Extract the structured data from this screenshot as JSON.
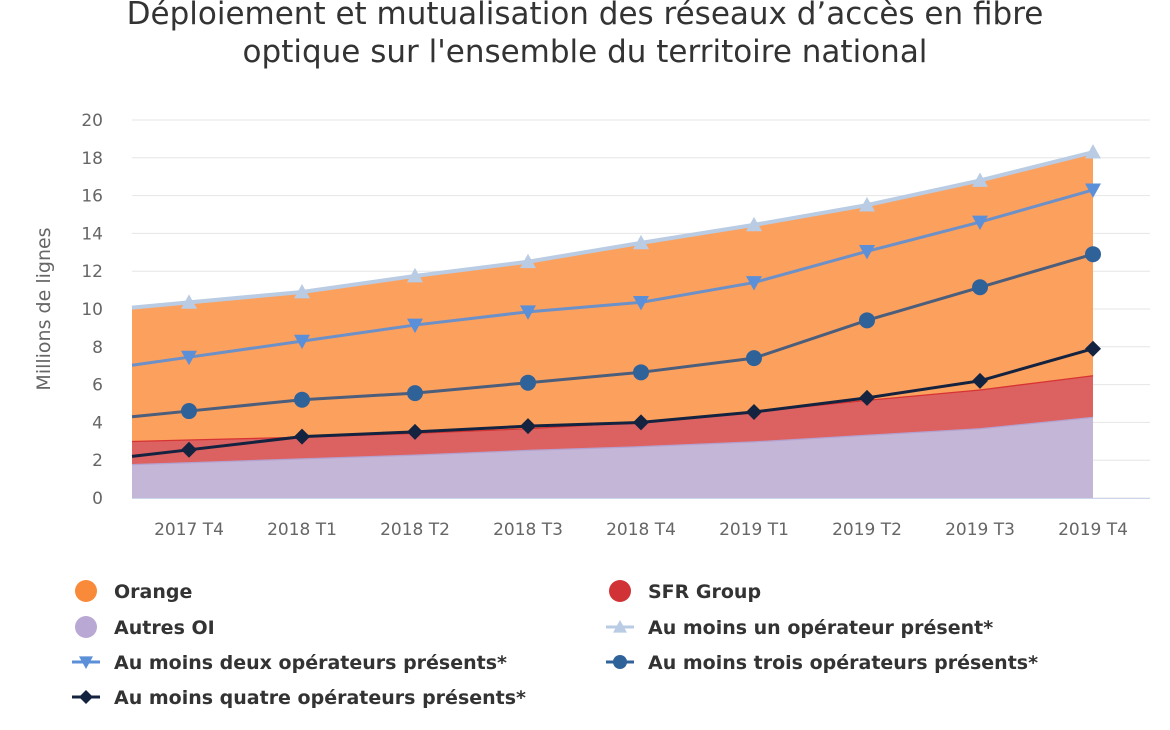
{
  "chart_data": {
    "type": "area",
    "stacked": true,
    "title_lines": [
      "Déploiement et mutualisation des réseaux d’accès en fibre",
      "optique sur l'ensemble du territoire national"
    ],
    "xlabel": "",
    "ylabel": "Millions de lignes",
    "ylim": [
      0,
      20
    ],
    "yticks": [
      0,
      2,
      4,
      6,
      8,
      10,
      12,
      14,
      16,
      18,
      20
    ],
    "grid": true,
    "legend_placement": "bottom",
    "categories": [
      "2017 T4",
      "2018 T1",
      "2018 T2",
      "2018 T3",
      "2018 T4",
      "2019 T1",
      "2019 T2",
      "2019 T3",
      "2019 T4"
    ],
    "areas": [
      {
        "name": "Autres OI",
        "color": "#C4B6D7",
        "line": "#B3A2D0",
        "values": [
          1.9,
          2.1,
          2.3,
          2.55,
          2.75,
          3.0,
          3.35,
          3.7,
          4.3
        ]
      },
      {
        "name": "SFR Group",
        "color": "#DC6262",
        "line": "#D63333",
        "values": [
          1.2,
          1.15,
          1.15,
          1.15,
          1.3,
          1.6,
          1.85,
          2.05,
          2.2
        ]
      },
      {
        "name": "Orange",
        "color": "#FCA05E",
        "line": "#F5924A",
        "values": [
          7.25,
          7.65,
          8.3,
          8.8,
          9.45,
          9.85,
          10.3,
          11.05,
          11.8
        ]
      }
    ],
    "lines": [
      {
        "name": "Au moins un opérateur présent*",
        "color": "#B9CCE3",
        "marker": "triangle-up",
        "values": [
          10.35,
          10.9,
          11.75,
          12.5,
          13.5,
          14.45,
          15.5,
          16.8,
          18.3
        ]
      },
      {
        "name": "Au moins deux opérateurs présents*",
        "color": "#5B8FD8",
        "marker": "triangle-down",
        "values": [
          7.45,
          8.3,
          9.15,
          9.85,
          10.35,
          11.4,
          13.05,
          14.6,
          16.3
        ]
      },
      {
        "name": "Au moins trois opérateurs présents*",
        "color": "#30629A",
        "marker": "circle",
        "values": [
          4.6,
          5.2,
          5.55,
          6.1,
          6.65,
          7.4,
          9.4,
          11.15,
          12.9
        ]
      },
      {
        "name": "Au moins quatre opérateurs présents*",
        "color": "#14233F",
        "marker": "diamond",
        "values": [
          2.55,
          3.25,
          3.5,
          3.8,
          4.0,
          4.55,
          5.3,
          6.2,
          7.9
        ]
      }
    ],
    "legend_order": [
      "Orange",
      "SFR Group",
      "Autres OI",
      "Au moins un opérateur présent*",
      "Au moins deux opérateurs présents*",
      "Au moins trois opérateurs présents*",
      "Au moins quatre opérateurs présents*"
    ]
  }
}
